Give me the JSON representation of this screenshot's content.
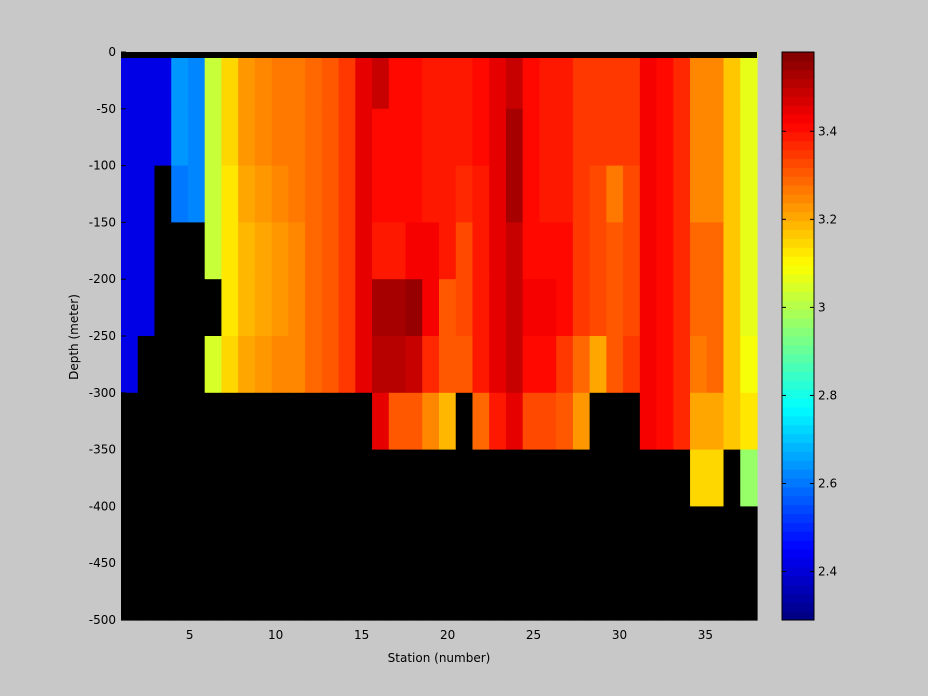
{
  "chart_data": {
    "type": "heatmap",
    "xlabel": "Station (number)",
    "ylabel": "Depth (meter)",
    "xlim": [
      1,
      38
    ],
    "ylim": [
      -500,
      0
    ],
    "xticks": [
      5,
      10,
      15,
      20,
      25,
      30,
      35
    ],
    "yticks": [
      0,
      -50,
      -100,
      -150,
      -200,
      -250,
      -300,
      -350,
      -400,
      -450,
      -500
    ],
    "depth_bins": [
      0,
      -50,
      -100,
      -150,
      -200,
      -250,
      -300,
      -350,
      -400,
      -450
    ],
    "depth_bin_size": 50,
    "stations": [
      1,
      2,
      3,
      4,
      5,
      6,
      7,
      8,
      9,
      10,
      11,
      12,
      13,
      14,
      15,
      16,
      17,
      18,
      19,
      20,
      21,
      22,
      23,
      24,
      25,
      26,
      27,
      28,
      29,
      30,
      31,
      32,
      33,
      34,
      35,
      36,
      37,
      38
    ],
    "values": [
      [
        2.42,
        2.42,
        2.42,
        2.65,
        2.63,
        3.02,
        3.14,
        3.22,
        3.24,
        3.26,
        3.26,
        3.28,
        3.31,
        3.34,
        3.44,
        3.48,
        3.4,
        3.4,
        3.38,
        3.38,
        3.38,
        3.4,
        3.45,
        3.48,
        3.4,
        3.38,
        3.38,
        3.35,
        3.35,
        3.34,
        3.35,
        3.43,
        3.4,
        3.36,
        3.24,
        3.24,
        3.16,
        3.06
      ],
      [
        2.42,
        2.42,
        2.42,
        2.65,
        2.63,
        3.02,
        3.14,
        3.22,
        3.24,
        3.26,
        3.26,
        3.28,
        3.31,
        3.34,
        3.44,
        3.4,
        3.4,
        3.4,
        3.38,
        3.38,
        3.38,
        3.4,
        3.45,
        3.52,
        3.4,
        3.38,
        3.38,
        3.35,
        3.35,
        3.34,
        3.35,
        3.43,
        3.4,
        3.36,
        3.24,
        3.24,
        3.16,
        3.06
      ],
      [
        2.42,
        2.42,
        null,
        2.6,
        2.63,
        3.02,
        3.12,
        3.2,
        3.22,
        3.24,
        3.26,
        3.28,
        3.31,
        3.34,
        3.44,
        3.4,
        3.4,
        3.4,
        3.38,
        3.38,
        3.36,
        3.38,
        3.45,
        3.52,
        3.4,
        3.38,
        3.38,
        3.35,
        3.33,
        3.26,
        3.32,
        3.43,
        3.4,
        3.36,
        3.24,
        3.24,
        3.16,
        3.06
      ],
      [
        2.42,
        2.42,
        null,
        null,
        null,
        3.02,
        3.12,
        3.18,
        3.2,
        3.22,
        3.24,
        3.28,
        3.31,
        3.34,
        3.44,
        3.38,
        3.38,
        3.43,
        3.43,
        3.38,
        3.33,
        3.38,
        3.45,
        3.48,
        3.4,
        3.4,
        3.4,
        3.35,
        3.33,
        3.31,
        3.32,
        3.43,
        3.4,
        3.36,
        3.28,
        3.28,
        3.16,
        3.06
      ],
      [
        2.42,
        2.42,
        null,
        null,
        null,
        null,
        3.12,
        3.18,
        3.2,
        3.22,
        3.24,
        3.28,
        3.31,
        3.34,
        3.44,
        3.52,
        3.52,
        3.55,
        3.43,
        3.3,
        3.33,
        3.38,
        3.45,
        3.48,
        3.42,
        3.42,
        3.4,
        3.35,
        3.33,
        3.31,
        3.32,
        3.43,
        3.4,
        3.36,
        3.28,
        3.28,
        3.16,
        3.06
      ],
      [
        2.42,
        null,
        null,
        null,
        null,
        3.04,
        3.14,
        3.2,
        3.22,
        3.24,
        3.24,
        3.28,
        3.31,
        3.34,
        3.44,
        3.5,
        3.5,
        3.48,
        3.36,
        3.31,
        3.31,
        3.38,
        3.45,
        3.48,
        3.4,
        3.4,
        3.34,
        3.28,
        3.2,
        3.31,
        3.35,
        3.43,
        3.4,
        3.36,
        3.26,
        3.28,
        3.16,
        3.08
      ],
      [
        null,
        null,
        null,
        null,
        null,
        null,
        null,
        null,
        null,
        null,
        null,
        null,
        null,
        null,
        null,
        3.44,
        3.3,
        3.3,
        3.24,
        3.18,
        null,
        3.28,
        3.38,
        3.44,
        3.32,
        3.32,
        3.3,
        3.22,
        null,
        null,
        null,
        3.43,
        3.4,
        3.36,
        3.2,
        3.2,
        3.16,
        3.12
      ],
      [
        null,
        null,
        null,
        null,
        null,
        null,
        null,
        null,
        null,
        null,
        null,
        null,
        null,
        null,
        null,
        null,
        null,
        null,
        null,
        null,
        null,
        null,
        null,
        null,
        null,
        null,
        null,
        null,
        null,
        null,
        null,
        null,
        null,
        null,
        3.14,
        3.14,
        null,
        2.96
      ],
      [
        null,
        null,
        null,
        null,
        null,
        null,
        null,
        null,
        null,
        null,
        null,
        null,
        null,
        null,
        null,
        null,
        null,
        null,
        null,
        null,
        null,
        null,
        null,
        null,
        null,
        null,
        null,
        null,
        null,
        null,
        null,
        null,
        null,
        null,
        null,
        null,
        null,
        null
      ],
      [
        null,
        null,
        null,
        null,
        null,
        null,
        null,
        null,
        null,
        null,
        null,
        null,
        null,
        null,
        null,
        null,
        null,
        null,
        null,
        null,
        null,
        null,
        null,
        null,
        null,
        null,
        null,
        null,
        null,
        null,
        null,
        null,
        null,
        null,
        null,
        null,
        null,
        null
      ]
    ],
    "colorbar": {
      "clim": [
        2.29,
        3.58
      ],
      "ticks": [
        2.4,
        2.6,
        2.8,
        3,
        3.2,
        3.4
      ],
      "tick_labels": [
        "2.4",
        "2.6",
        "2.8",
        "3",
        "3.2",
        "3.4"
      ],
      "colormap": "jet",
      "levels": 64
    },
    "missing_color": "#000000",
    "top_band_color": "#000000",
    "grid": false,
    "legend": "none"
  },
  "colors": {
    "figure_background": "#c8c8c8",
    "axes_border": "#000000"
  }
}
